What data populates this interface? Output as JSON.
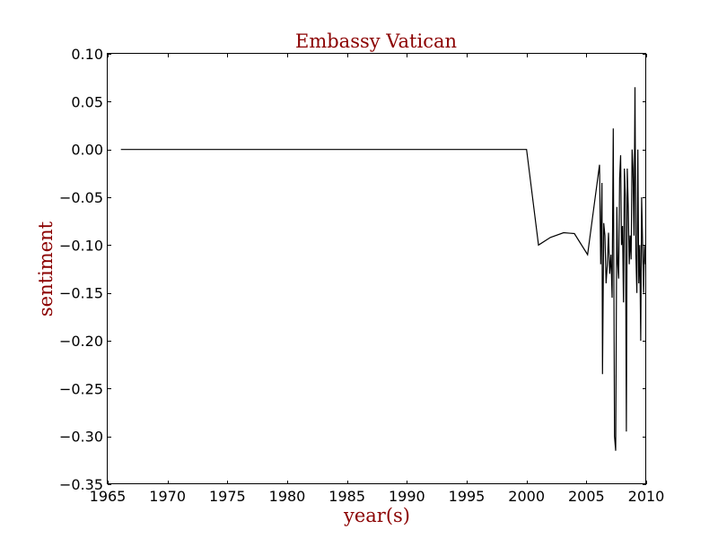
{
  "chart_data": {
    "type": "line",
    "title": "Embassy Vatican",
    "xlabel": "year(s)",
    "ylabel": "sentiment",
    "xlim": [
      1965,
      2010
    ],
    "ylim": [
      -0.35,
      0.1
    ],
    "xticks": [
      "1965",
      "1970",
      "1975",
      "1980",
      "1985",
      "1990",
      "1995",
      "2000",
      "2005",
      "2010"
    ],
    "yticks": [
      "0.10",
      "0.05",
      "0.00",
      "−0.05",
      "−0.10",
      "−0.15",
      "−0.20",
      "−0.25",
      "−0.30",
      "−0.35"
    ],
    "grid": false,
    "colors": {
      "line": "#000000",
      "title": "#8b0000",
      "labels": "#8b0000"
    },
    "series": [
      {
        "x": [
          1966.1,
          2000.0,
          2001.0,
          2002.0,
          2003.1,
          2004.0,
          2005.1,
          2006.1,
          2006.2,
          2006.3,
          2006.35,
          2006.45,
          2006.55,
          2006.65,
          2006.75,
          2006.85,
          2006.95,
          2007.05,
          2007.15,
          2007.25,
          2007.35,
          2007.45,
          2007.55,
          2007.62,
          2007.7,
          2007.78,
          2007.86,
          2007.94,
          2008.02,
          2008.1,
          2008.18,
          2008.26,
          2008.34,
          2008.42,
          2008.5,
          2008.58,
          2008.66,
          2008.74,
          2008.82,
          2008.9,
          2008.98,
          2009.06,
          2009.14,
          2009.22,
          2009.3,
          2009.38,
          2009.46,
          2009.54,
          2009.62,
          2009.7,
          2009.78,
          2009.86,
          2009.94
        ],
        "y": [
          0.0,
          0.0,
          -0.1,
          -0.092,
          -0.087,
          -0.088,
          -0.11,
          -0.016,
          -0.12,
          -0.035,
          -0.235,
          -0.077,
          -0.09,
          -0.14,
          -0.12,
          -0.087,
          -0.13,
          -0.11,
          -0.155,
          0.022,
          -0.3,
          -0.315,
          -0.06,
          -0.12,
          -0.135,
          -0.03,
          -0.006,
          -0.1,
          -0.08,
          -0.16,
          -0.02,
          -0.05,
          -0.295,
          -0.02,
          -0.06,
          -0.12,
          -0.09,
          -0.115,
          0.0,
          -0.02,
          -0.09,
          0.065,
          -0.11,
          -0.15,
          0.0,
          -0.14,
          -0.1,
          -0.2,
          -0.05,
          -0.1,
          -0.15,
          -0.1,
          -0.12
        ]
      }
    ]
  }
}
